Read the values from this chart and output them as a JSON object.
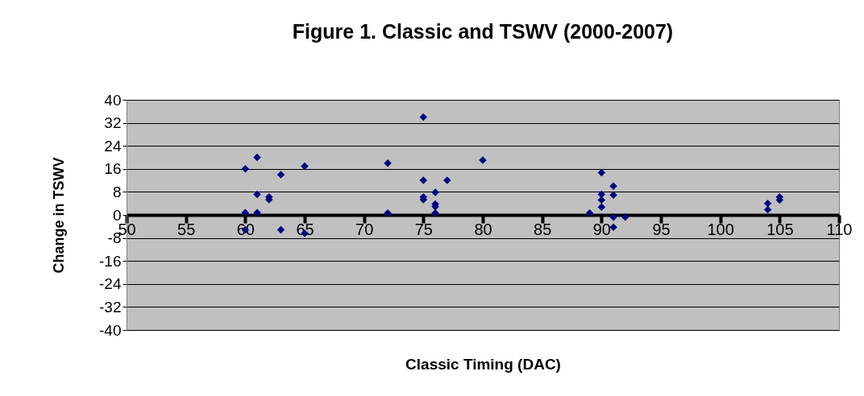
{
  "chart_data": {
    "type": "scatter",
    "title": "Figure 1. Classic and TSWV (2000-2007)",
    "xlabel": "Classic Timing (DAC)",
    "ylabel": "Change in TSWV",
    "x": [
      60,
      60,
      60,
      61,
      61,
      61,
      62,
      62,
      63,
      63,
      65,
      65,
      72,
      72,
      75,
      75,
      75,
      75,
      76,
      76,
      76,
      76,
      77,
      80,
      89,
      90,
      90,
      90,
      90,
      91,
      91,
      91,
      91,
      92,
      104,
      104,
      105,
      105
    ],
    "series": [
      {
        "color": "#000080",
        "values": [
          16,
          0.8,
          -5.2,
          20,
          7.1,
          0.8,
          6.2,
          5.3,
          14,
          -5.2,
          16.9,
          -6.4,
          18,
          0.6,
          34,
          12,
          6.2,
          5.3,
          7.8,
          3.8,
          2.9,
          0.6,
          12,
          19,
          0.6,
          14.7,
          7.1,
          5.2,
          2.7,
          10,
          6.9,
          -0.8,
          -4.3,
          -0.8,
          4,
          1.8,
          6.2,
          5.2
        ]
      }
    ],
    "xlim": [
      50,
      110
    ],
    "xticks": [
      50,
      55,
      60,
      65,
      70,
      75,
      80,
      85,
      90,
      95,
      100,
      105,
      110
    ],
    "ylim": [
      -40,
      40
    ],
    "yticks": [
      -40,
      -32,
      -24,
      -16,
      -8,
      0,
      8,
      16,
      24,
      32,
      40
    ],
    "grid": "y",
    "marker": "diamond"
  }
}
